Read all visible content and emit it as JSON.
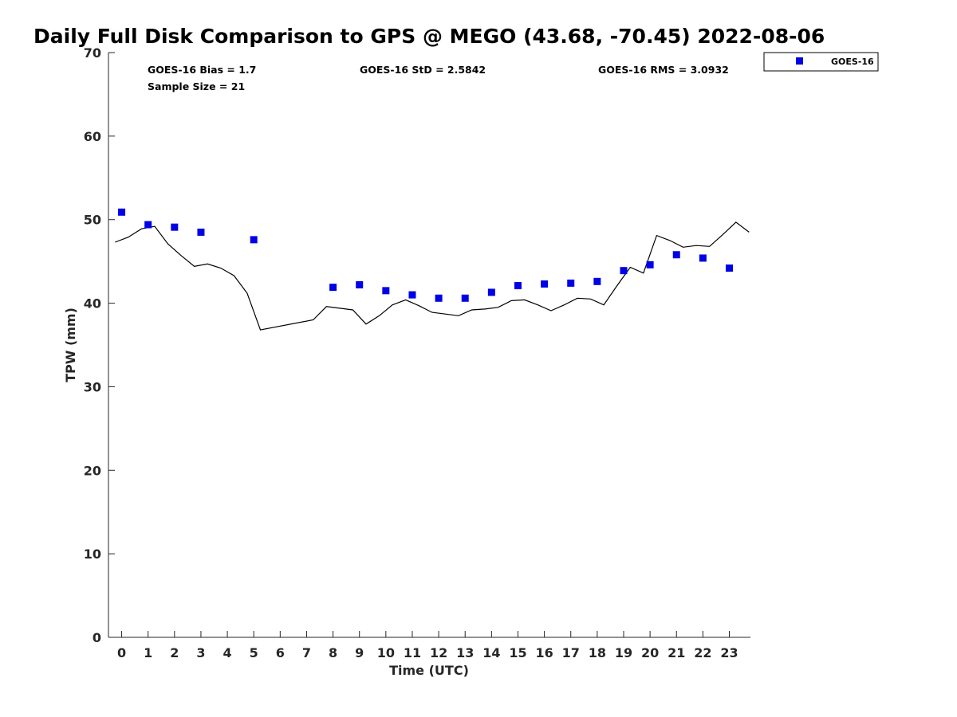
{
  "chart_data": {
    "type": "scatter",
    "title": "Daily Full Disk Comparison to GPS @ MEGO (43.68, -70.45) 2022-08-06",
    "xlabel": "Time (UTC)",
    "ylabel": "TPW (mm)",
    "xlim": [
      -0.5,
      23.8
    ],
    "ylim": [
      0,
      70
    ],
    "xticks": [
      0,
      1,
      2,
      3,
      4,
      5,
      6,
      7,
      8,
      9,
      10,
      11,
      12,
      13,
      14,
      15,
      16,
      17,
      18,
      19,
      20,
      21,
      22,
      23
    ],
    "yticks": [
      0,
      10,
      20,
      30,
      40,
      50,
      60,
      70
    ],
    "grid": false,
    "legend_placement": "outside-top-right",
    "stats": {
      "bias": "GOES-16 Bias = 1.7",
      "std": "GOES-16 StD = 2.5842",
      "rms": "GOES-16 RMS = 3.0932",
      "sample": "Sample Size = 21"
    },
    "series": [
      {
        "name": "GOES-16",
        "kind": "markers",
        "marker": "square",
        "color": "#0000e6",
        "x": [
          0,
          1,
          2,
          3,
          5,
          8,
          9,
          10,
          11,
          12,
          13,
          14,
          15,
          16,
          17,
          18,
          19,
          20,
          21,
          22,
          23
        ],
        "y": [
          50.9,
          49.4,
          49.1,
          48.5,
          47.6,
          41.9,
          42.2,
          41.5,
          41.0,
          40.6,
          40.6,
          41.3,
          42.1,
          42.3,
          42.4,
          42.6,
          43.9,
          44.6,
          45.8,
          45.4,
          44.2
        ]
      },
      {
        "kind": "line",
        "color": "#000000",
        "x": [
          -0.25,
          0.25,
          0.75,
          1.25,
          1.75,
          2.25,
          2.75,
          3.25,
          3.75,
          4.25,
          4.75,
          5.25,
          7.25,
          7.75,
          8.25,
          8.75,
          9.25,
          9.75,
          10.25,
          10.75,
          11.25,
          11.75,
          12.25,
          12.75,
          13.25,
          13.75,
          14.25,
          14.75,
          15.25,
          15.75,
          16.25,
          16.75,
          17.25,
          17.75,
          18.25,
          18.75,
          19.25,
          19.75,
          20.25,
          20.75,
          21.25,
          21.75,
          22.25,
          22.75,
          23.25,
          23.75
        ],
        "y": [
          47.3,
          47.9,
          48.9,
          49.2,
          47.1,
          45.7,
          44.4,
          44.7,
          44.2,
          43.3,
          41.2,
          36.8,
          38.0,
          39.6,
          39.4,
          39.2,
          37.5,
          38.5,
          39.8,
          40.4,
          39.7,
          38.9,
          38.7,
          38.5,
          39.2,
          39.3,
          39.5,
          40.3,
          40.4,
          39.8,
          39.1,
          39.8,
          40.6,
          40.5,
          39.8,
          42.1,
          44.3,
          43.6,
          48.1,
          47.5,
          46.7,
          46.9,
          46.8,
          48.2,
          49.7,
          48.5
        ]
      }
    ]
  }
}
